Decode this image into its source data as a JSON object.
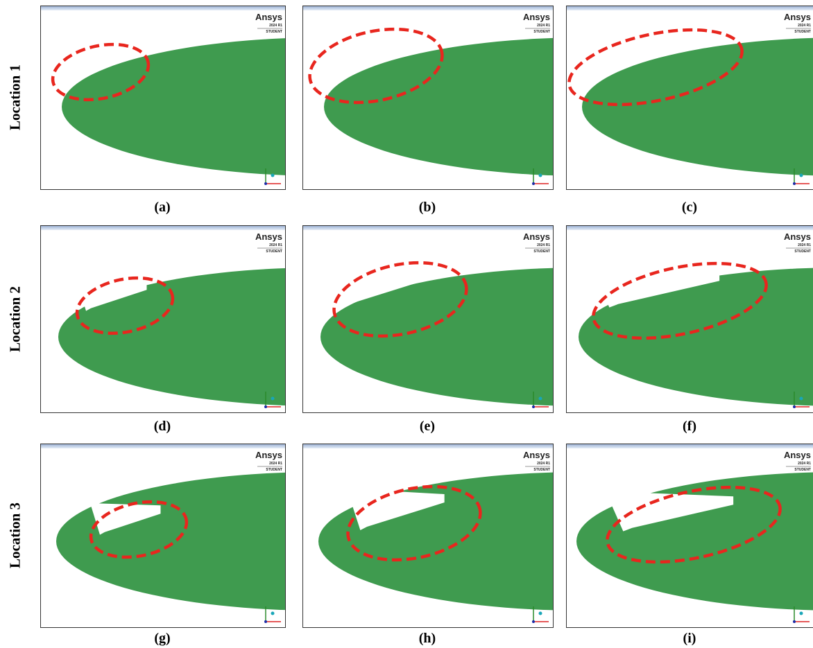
{
  "rows": [
    {
      "label": "Location 1",
      "panels": [
        {
          "caption": "(a)",
          "logo": "Ansys",
          "version": "2024 R1",
          "edition": "STUDENT"
        },
        {
          "caption": "(b)",
          "logo": "Ansys",
          "version": "2024 R1",
          "edition": "STUDENT"
        },
        {
          "caption": "(c)",
          "logo": "Ansys",
          "version": "2024 R1",
          "edition": "STUDENT"
        }
      ]
    },
    {
      "label": "Location 2",
      "panels": [
        {
          "caption": "(d)",
          "logo": "Ansys",
          "version": "2024 R1",
          "edition": "STUDENT"
        },
        {
          "caption": "(e)",
          "logo": "Ansys",
          "version": "2024 R1",
          "edition": "STUDENT"
        },
        {
          "caption": "(f)",
          "logo": "Ansys",
          "version": "2024 R1",
          "edition": "STUDENT"
        }
      ]
    },
    {
      "label": "Location 3",
      "panels": [
        {
          "caption": "(g)",
          "logo": "Ansys",
          "version": "2024 R1",
          "edition": "STUDENT"
        },
        {
          "caption": "(h)",
          "logo": "Ansys",
          "version": "2024 R1",
          "edition": "STUDENT"
        },
        {
          "caption": "(i)",
          "logo": "Ansys",
          "version": "2024 R1",
          "edition": "STUDENT"
        }
      ]
    }
  ]
}
